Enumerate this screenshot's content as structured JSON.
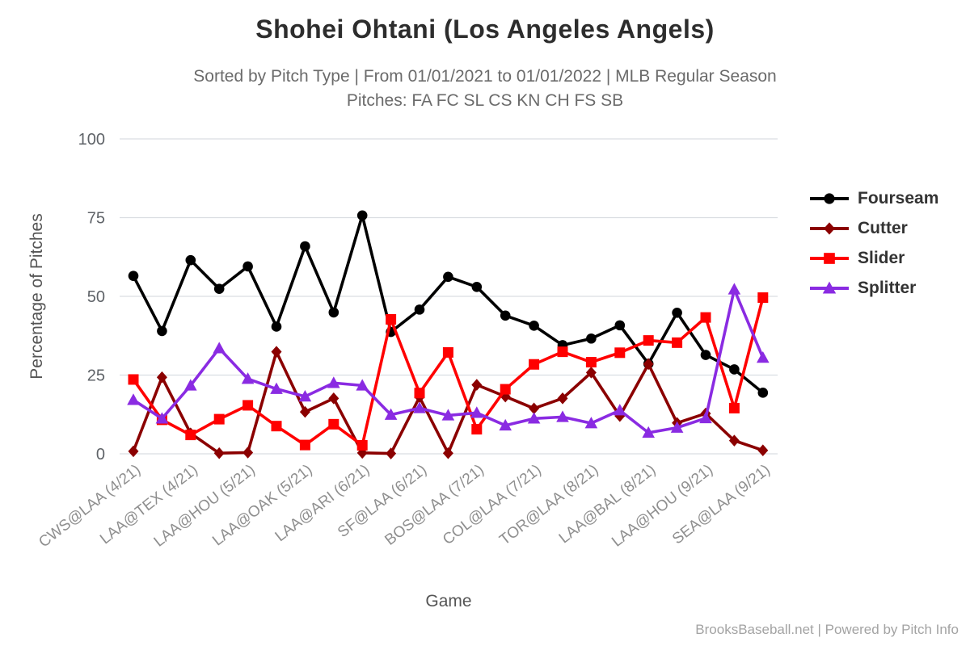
{
  "header": {
    "title": "Shohei Ohtani (Los Angeles Angels)",
    "subtitle_line1": "Sorted by Pitch Type | From 01/01/2021 to 01/01/2022 | MLB Regular Season",
    "subtitle_line2": "Pitches: FA FC SL CS KN CH FS SB"
  },
  "footer": {
    "credit": "BrooksBaseball.net | Powered by Pitch Info"
  },
  "chart_data": {
    "type": "line",
    "title": "Shohei Ohtani (Los Angeles Angels)",
    "xlabel": "Game",
    "ylabel": "Percentage of Pitches",
    "ylim": [
      0,
      100
    ],
    "yticks": [
      0,
      25,
      50,
      75,
      100
    ],
    "grid": "horizontal-only",
    "gridline_color": "#dadee2",
    "tick_label_color": "#8f8f8f",
    "legend_position": "right",
    "n_games": 23,
    "x_tick_labels": [
      "CWS@LAA (4/21)",
      "LAA@TEX (4/21)",
      "LAA@HOU (5/21)",
      "LAA@OAK (5/21)",
      "LAA@ARI (6/21)",
      "SF@LAA (6/21)",
      "BOS@LAA (7/21)",
      "COL@LAA (7/21)",
      "TOR@LAA (8/21)",
      "LAA@BAL (8/21)",
      "LAA@HOU (9/21)",
      "SEA@LAA (9/21)"
    ],
    "x_tick_game_indices": [
      0,
      2,
      4,
      6,
      8,
      10,
      12,
      14,
      16,
      18,
      20,
      22
    ],
    "series": [
      {
        "name": "Fourseam",
        "color": "#000000",
        "marker": "circle",
        "values": [
          56.5,
          39.0,
          61.5,
          52.4,
          59.5,
          40.4,
          65.9,
          44.9,
          75.7,
          38.7,
          45.8,
          56.2,
          53.0,
          43.9,
          40.7,
          34.5,
          36.6,
          40.8,
          28.6,
          44.8,
          31.4,
          26.8,
          19.4
        ]
      },
      {
        "name": "Cutter",
        "color": "#8B0000",
        "marker": "diamond",
        "values": [
          0.8,
          24.3,
          6.5,
          0.2,
          0.4,
          32.4,
          13.3,
          17.6,
          0.3,
          0.1,
          18.0,
          0.2,
          21.9,
          18.2,
          14.4,
          17.6,
          25.8,
          12.0,
          28.5,
          9.8,
          12.8,
          4.2,
          1.1
        ]
      },
      {
        "name": "Slider",
        "color": "#FF0000",
        "marker": "square",
        "values": [
          23.6,
          10.8,
          6.0,
          11.0,
          15.4,
          8.8,
          2.8,
          9.4,
          2.7,
          42.7,
          19.3,
          32.2,
          7.8,
          20.5,
          28.4,
          32.4,
          29.1,
          32.1,
          36.0,
          35.3,
          43.3,
          14.5,
          49.6
        ]
      },
      {
        "name": "Splitter",
        "color": "#8A2BE2",
        "marker": "triangle",
        "values": [
          17.1,
          11.2,
          21.7,
          33.5,
          23.8,
          20.6,
          18.2,
          22.5,
          21.7,
          12.4,
          14.5,
          12.2,
          13.0,
          9.0,
          11.2,
          11.7,
          9.7,
          13.8,
          6.7,
          8.3,
          11.3,
          52.2,
          30.5
        ]
      }
    ]
  }
}
